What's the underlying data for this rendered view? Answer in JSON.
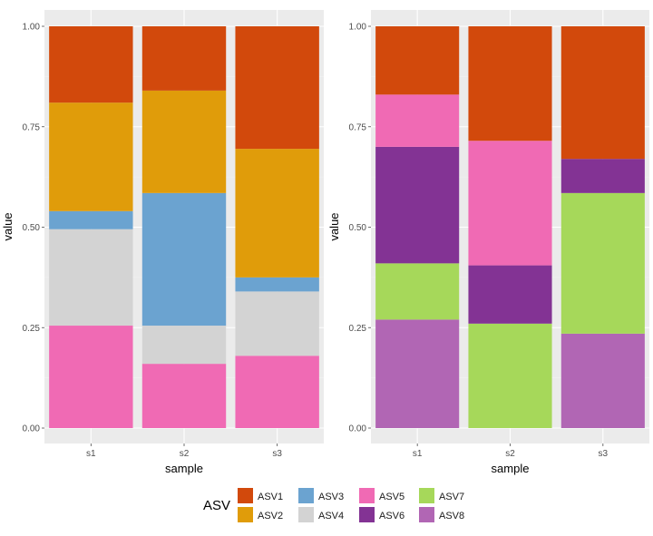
{
  "legend": {
    "title": "ASV",
    "items": [
      {
        "label": "ASV1",
        "color": "#D2490C"
      },
      {
        "label": "ASV2",
        "color": "#E09C0A"
      },
      {
        "label": "ASV3",
        "color": "#6BA3D0"
      },
      {
        "label": "ASV4",
        "color": "#D3D3D3"
      },
      {
        "label": "ASV5",
        "color": "#F06AB4"
      },
      {
        "label": "ASV6",
        "color": "#833394"
      },
      {
        "label": "ASV7",
        "color": "#A6D85A"
      },
      {
        "label": "ASV8",
        "color": "#B166B4"
      }
    ]
  },
  "chart_data": [
    {
      "type": "bar",
      "stacked": true,
      "xlabel": "sample",
      "ylabel": "value",
      "ylim": [
        0,
        1
      ],
      "yticks": [
        "0.00",
        "0.25",
        "0.50",
        "0.75",
        "1.00"
      ],
      "categories": [
        "s1",
        "s2",
        "s3"
      ],
      "grid": true,
      "series": [
        {
          "name": "ASV5",
          "color": "#F06AB4",
          "values": [
            0.255,
            0.16,
            0.18
          ]
        },
        {
          "name": "ASV4",
          "color": "#D3D3D3",
          "values": [
            0.24,
            0.095,
            0.16
          ]
        },
        {
          "name": "ASV3",
          "color": "#6BA3D0",
          "values": [
            0.045,
            0.33,
            0.035
          ]
        },
        {
          "name": "ASV2",
          "color": "#E09C0A",
          "values": [
            0.27,
            0.255,
            0.32
          ]
        },
        {
          "name": "ASV1",
          "color": "#D2490C",
          "values": [
            0.19,
            0.16,
            0.305
          ]
        }
      ]
    },
    {
      "type": "bar",
      "stacked": true,
      "xlabel": "sample",
      "ylabel": "value",
      "ylim": [
        0,
        1
      ],
      "yticks": [
        "0.00",
        "0.25",
        "0.50",
        "0.75",
        "1.00"
      ],
      "categories": [
        "s1",
        "s2",
        "s3"
      ],
      "grid": true,
      "series": [
        {
          "name": "ASV8",
          "color": "#B166B4",
          "values": [
            0.27,
            0.0,
            0.235
          ]
        },
        {
          "name": "ASV7",
          "color": "#A6D85A",
          "values": [
            0.14,
            0.26,
            0.35
          ]
        },
        {
          "name": "ASV6",
          "color": "#833394",
          "values": [
            0.29,
            0.145,
            0.085
          ]
        },
        {
          "name": "ASV5",
          "color": "#F06AB4",
          "values": [
            0.13,
            0.31,
            0.0
          ]
        },
        {
          "name": "ASV1",
          "color": "#D2490C",
          "values": [
            0.17,
            0.285,
            0.33
          ]
        }
      ]
    }
  ]
}
